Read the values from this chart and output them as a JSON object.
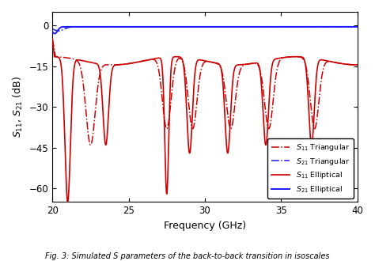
{
  "xlabel": "Frequency (GHz)",
  "ylabel": "S$_{11}$, S$_{21}$ (dB)",
  "xlim": [
    20,
    40
  ],
  "ylim": [
    -65,
    5
  ],
  "yticks": [
    0,
    -15,
    -30,
    -45,
    -60
  ],
  "xticks": [
    20,
    25,
    30,
    35,
    40
  ],
  "caption": "Fig. 3: Simulated S parameters of the back-to-back transition in isoscales",
  "background_color": "#ffffff",
  "red_color": "#cc0000",
  "blue_color": "#1a1aff",
  "null_freqs_ell": [
    21.0,
    23.5,
    27.5,
    29.0,
    31.5,
    34.0,
    37.0
  ],
  "null_depths_ell": [
    -65,
    -44,
    -62,
    -47,
    -47,
    -44,
    -44
  ],
  "null_freqs_tri": [
    22.5,
    27.5,
    29.2,
    31.7,
    34.2,
    37.2
  ],
  "null_depths_tri": [
    -44,
    -38,
    -38,
    -38,
    -38,
    -38
  ]
}
